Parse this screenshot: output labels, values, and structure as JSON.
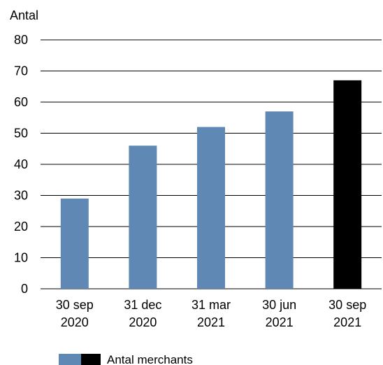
{
  "chart_data": {
    "type": "bar",
    "title": "",
    "xlabel": "",
    "ylabel": "Antal",
    "ylim": [
      0,
      80
    ],
    "yticks": [
      0,
      10,
      20,
      30,
      40,
      50,
      60,
      70,
      80
    ],
    "grid": true,
    "legend_position": "bottom-left",
    "categories": [
      [
        "30 sep",
        "2020"
      ],
      [
        "31 dec",
        "2020"
      ],
      [
        "31 mar",
        "2021"
      ],
      [
        "30 jun",
        "2021"
      ],
      [
        "30 sep",
        "2021"
      ]
    ],
    "series": [
      {
        "name": "Antal merchants",
        "values": [
          29,
          46,
          52,
          57,
          67
        ],
        "colors": [
          "#5f88b4",
          "#5f88b4",
          "#5f88b4",
          "#5f88b4",
          "#000000"
        ]
      }
    ],
    "legend": {
      "label": "Antal merchants",
      "swatch_colors": [
        "#5f88b4",
        "#000000"
      ]
    },
    "colors": {
      "bar": "#5f88b4",
      "highlight": "#000000",
      "grid": "#000000",
      "text": "#000000"
    }
  }
}
